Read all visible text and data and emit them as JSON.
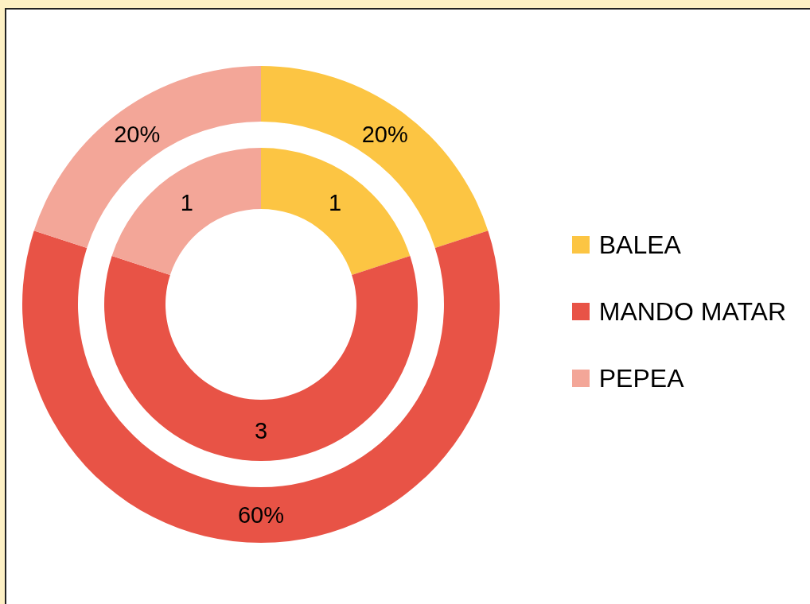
{
  "chart_data": {
    "type": "donut",
    "categories": [
      "BALEA",
      "MANDO MATAR",
      "PEPEA"
    ],
    "colors": [
      "#fcc543",
      "#e85346",
      "#f3a698"
    ],
    "series": [
      {
        "values": [
          1,
          3,
          1
        ],
        "value_labels": [
          "1",
          "3",
          "1"
        ]
      },
      {
        "values": [
          20,
          60,
          20
        ],
        "value_labels": [
          "20%",
          "60%",
          "20%"
        ]
      }
    ],
    "legend": "right"
  }
}
